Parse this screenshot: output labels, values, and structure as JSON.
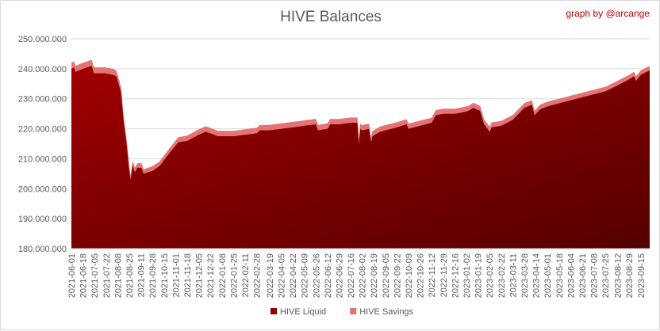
{
  "title": "HIVE Balances",
  "credit": "graph by @arcange",
  "colors": {
    "liquid": "#8b0000",
    "savings": "#e57373",
    "grid": "#d9d9d9",
    "text": "#595959"
  },
  "chart_data": {
    "type": "area",
    "stacked": true,
    "title": "HIVE Balances",
    "xlabel": "",
    "ylabel": "",
    "ylim": [
      180000000,
      250000000
    ],
    "yticks": [
      "180.000.000",
      "190.000.000",
      "200.000.000",
      "210.000.000",
      "220.000.000",
      "230.000.000",
      "240.000.000",
      "250.000.000"
    ],
    "ytick_values": [
      180000000,
      190000000,
      200000000,
      210000000,
      220000000,
      230000000,
      240000000,
      250000000
    ],
    "x_range": [
      "2021-06-01",
      "2023-09-28"
    ],
    "xticks": [
      "2021-06-01",
      "2021-06-18",
      "2021-07-05",
      "2021-07-22",
      "2021-08-08",
      "2021-08-25",
      "2021-09-11",
      "2021-09-28",
      "2021-10-15",
      "2021-11-01",
      "2021-11-18",
      "2021-12-05",
      "2021-12-22",
      "2022-01-08",
      "2022-01-25",
      "2022-02-11",
      "2022-02-28",
      "2022-03-19",
      "2022-04-05",
      "2022-04-22",
      "2022-05-09",
      "2022-05-26",
      "2022-06-12",
      "2022-06-29",
      "2022-07-16",
      "2022-08-02",
      "2022-08-19",
      "2022-09-05",
      "2022-09-22",
      "2022-10-09",
      "2022-10-26",
      "2022-11-12",
      "2022-11-29",
      "2022-12-16",
      "2023-01-02",
      "2023-01-19",
      "2023-02-05",
      "2023-02-22",
      "2023-03-11",
      "2023-03-28",
      "2023-04-14",
      "2023-05-01",
      "2023-05-18",
      "2023-06-04",
      "2023-06-21",
      "2023-07-08",
      "2023-07-25",
      "2023-08-12",
      "2023-08-29",
      "2023-09-15"
    ],
    "legend_position": "bottom",
    "grid": true,
    "series": [
      {
        "name": "HIVE Liquid",
        "color": "#8b0000",
        "points": [
          [
            "2021-06-01",
            240000000
          ],
          [
            "2021-06-05",
            240500000
          ],
          [
            "2021-06-07",
            239000000
          ],
          [
            "2021-06-18",
            240000000
          ],
          [
            "2021-07-01",
            241000000
          ],
          [
            "2021-07-04",
            238500000
          ],
          [
            "2021-07-20",
            238500000
          ],
          [
            "2021-08-01",
            238000000
          ],
          [
            "2021-08-06",
            237500000
          ],
          [
            "2021-08-10",
            234500000
          ],
          [
            "2021-08-13",
            232000000
          ],
          [
            "2021-08-17",
            222000000
          ],
          [
            "2021-08-21",
            215000000
          ],
          [
            "2021-08-25",
            206000000
          ],
          [
            "2021-08-27",
            203000000
          ],
          [
            "2021-08-30",
            208000000
          ],
          [
            "2021-09-02",
            205500000
          ],
          [
            "2021-09-06",
            207000000
          ],
          [
            "2021-09-12",
            207000000
          ],
          [
            "2021-09-15",
            205000000
          ],
          [
            "2021-09-28",
            206000000
          ],
          [
            "2021-10-08",
            207500000
          ],
          [
            "2021-10-15",
            209500000
          ],
          [
            "2021-10-25",
            212500000
          ],
          [
            "2021-11-05",
            215500000
          ],
          [
            "2021-11-18",
            216000000
          ],
          [
            "2021-12-05",
            218000000
          ],
          [
            "2021-12-15",
            219000000
          ],
          [
            "2021-12-22",
            218500000
          ],
          [
            "2022-01-02",
            217500000
          ],
          [
            "2022-01-08",
            217500000
          ],
          [
            "2022-01-25",
            217500000
          ],
          [
            "2022-02-11",
            218000000
          ],
          [
            "2022-02-28",
            218500000
          ],
          [
            "2022-03-05",
            219500000
          ],
          [
            "2022-03-19",
            219500000
          ],
          [
            "2022-04-05",
            220000000
          ],
          [
            "2022-04-22",
            220500000
          ],
          [
            "2022-05-09",
            221000000
          ],
          [
            "2022-05-26",
            221500000
          ],
          [
            "2022-05-29",
            219500000
          ],
          [
            "2022-06-12",
            220000000
          ],
          [
            "2022-06-16",
            221500000
          ],
          [
            "2022-06-29",
            221500000
          ],
          [
            "2022-07-16",
            222000000
          ],
          [
            "2022-07-26",
            222000000
          ],
          [
            "2022-07-28",
            215000000
          ],
          [
            "2022-07-30",
            220000000
          ],
          [
            "2022-08-02",
            219500000
          ],
          [
            "2022-08-12",
            220000000
          ],
          [
            "2022-08-15",
            215500000
          ],
          [
            "2022-08-17",
            217500000
          ],
          [
            "2022-08-28",
            219000000
          ],
          [
            "2022-09-05",
            219500000
          ],
          [
            "2022-09-22",
            220500000
          ],
          [
            "2022-10-06",
            221500000
          ],
          [
            "2022-10-09",
            220000000
          ],
          [
            "2022-10-26",
            221000000
          ],
          [
            "2022-11-12",
            222000000
          ],
          [
            "2022-11-18",
            224500000
          ],
          [
            "2022-11-29",
            225000000
          ],
          [
            "2022-12-16",
            225000000
          ],
          [
            "2022-12-28",
            225500000
          ],
          [
            "2023-01-05",
            226000000
          ],
          [
            "2023-01-12",
            227000000
          ],
          [
            "2023-01-22",
            226000000
          ],
          [
            "2023-01-28",
            221500000
          ],
          [
            "2023-02-02",
            220000000
          ],
          [
            "2023-02-05",
            219000000
          ],
          [
            "2023-02-08",
            220500000
          ],
          [
            "2023-02-22",
            221000000
          ],
          [
            "2023-03-11",
            223000000
          ],
          [
            "2023-03-28",
            227000000
          ],
          [
            "2023-04-08",
            228000000
          ],
          [
            "2023-04-12",
            224500000
          ],
          [
            "2023-04-20",
            226500000
          ],
          [
            "2023-05-01",
            227500000
          ],
          [
            "2023-05-18",
            228500000
          ],
          [
            "2023-06-04",
            229500000
          ],
          [
            "2023-06-21",
            230500000
          ],
          [
            "2023-07-08",
            231500000
          ],
          [
            "2023-07-25",
            232500000
          ],
          [
            "2023-08-12",
            234500000
          ],
          [
            "2023-08-29",
            236500000
          ],
          [
            "2023-09-05",
            237500000
          ],
          [
            "2023-09-08",
            236000000
          ],
          [
            "2023-09-15",
            238000000
          ],
          [
            "2023-09-28",
            239500000
          ]
        ]
      },
      {
        "name": "HIVE Savings",
        "color": "#e57373",
        "points": [
          [
            "2021-06-01",
            2000000
          ],
          [
            "2021-08-01",
            2000000
          ],
          [
            "2021-08-25",
            1500000
          ],
          [
            "2021-10-01",
            1500000
          ],
          [
            "2021-12-05",
            1800000
          ],
          [
            "2022-03-01",
            1800000
          ],
          [
            "2022-06-01",
            1800000
          ],
          [
            "2022-09-01",
            1700000
          ],
          [
            "2022-12-01",
            1700000
          ],
          [
            "2023-03-01",
            1600000
          ],
          [
            "2023-06-01",
            1500000
          ],
          [
            "2023-09-28",
            1500000
          ]
        ]
      }
    ]
  }
}
